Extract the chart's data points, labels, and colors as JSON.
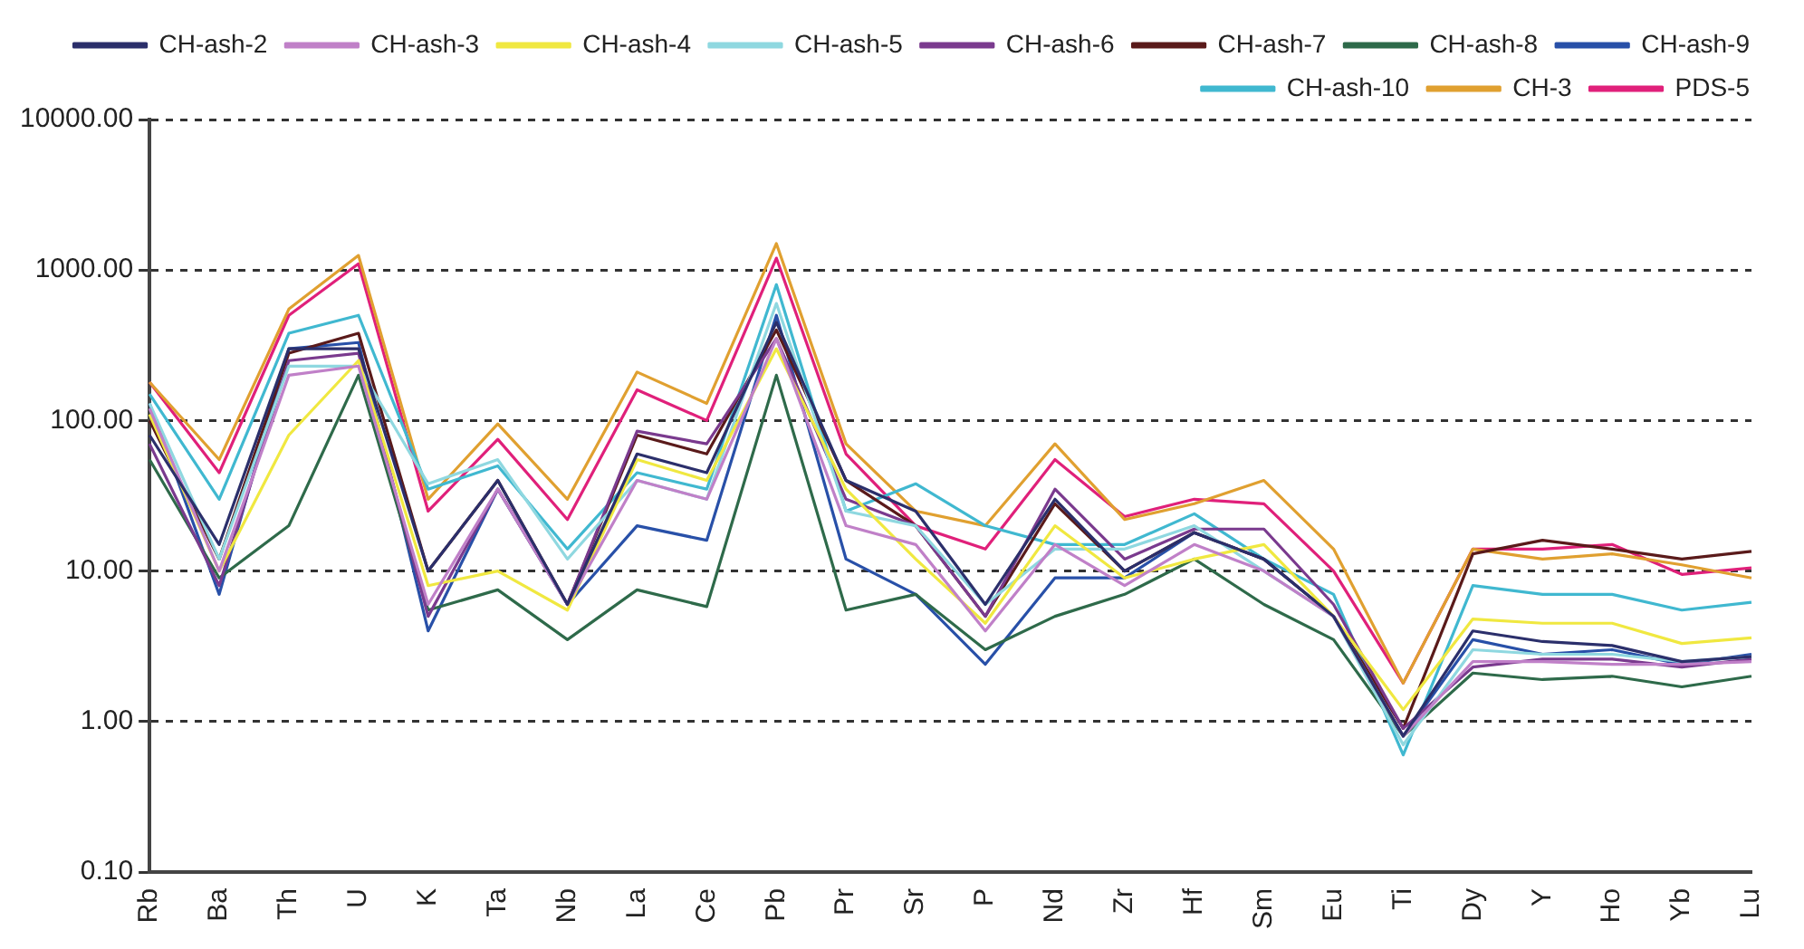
{
  "chart_data": {
    "type": "line",
    "categories": [
      "Rb",
      "Ba",
      "Th",
      "U",
      "K",
      "Ta",
      "Nb",
      "La",
      "Ce",
      "Pb",
      "Pr",
      "Sr",
      "P",
      "Nd",
      "Zr",
      "Hf",
      "Sm",
      "Eu",
      "Ti",
      "Dy",
      "Y",
      "Ho",
      "Yb",
      "Lu"
    ],
    "log": "y",
    "ylim": [
      0.1,
      10000
    ],
    "yticks": [
      {
        "value": 0.1,
        "label": "0.10"
      },
      {
        "value": 1,
        "label": "1.00"
      },
      {
        "value": 10,
        "label": "10.00"
      },
      {
        "value": 100,
        "label": "100.00"
      },
      {
        "value": 1000,
        "label": "1000.00"
      },
      {
        "value": 10000,
        "label": "10000.00"
      }
    ],
    "grid": "y",
    "legend": "top right",
    "marker": "none",
    "line_style": "solid",
    "series": [
      {
        "name": "CH-ash-2",
        "color": "#2b2f6b",
        "values": [
          80,
          15,
          300,
          300,
          10,
          40,
          6,
          60,
          45,
          450,
          40,
          25,
          6,
          30,
          10,
          18,
          12,
          5,
          0.8,
          4,
          3.4,
          3.2,
          2.5,
          2.7
        ]
      },
      {
        "name": "CH-ash-3",
        "color": "#c080c8",
        "values": [
          120,
          10,
          200,
          230,
          6,
          35,
          6,
          40,
          30,
          350,
          20,
          15,
          4,
          15,
          8,
          15,
          10,
          5,
          0.8,
          2.5,
          2.5,
          2.4,
          2.4,
          2.5
        ]
      },
      {
        "name": "CH-ash-4",
        "color": "#f0e840",
        "values": [
          110,
          10,
          80,
          250,
          8,
          10,
          5.5,
          55,
          40,
          300,
          35,
          12,
          4.5,
          20,
          9,
          12,
          15,
          5,
          1.2,
          4.8,
          4.5,
          4.5,
          3.3,
          3.6
        ]
      },
      {
        "name": "CH-ash-5",
        "color": "#8fd8e0",
        "values": [
          130,
          12,
          230,
          230,
          38,
          55,
          12,
          40,
          30,
          600,
          25,
          20,
          6,
          14,
          14,
          20,
          10,
          5,
          0.7,
          3,
          2.8,
          2.8,
          2.5,
          2.7
        ]
      },
      {
        "name": "CH-ash-6",
        "color": "#7a3a8e",
        "values": [
          70,
          8,
          250,
          280,
          5,
          35,
          6,
          85,
          70,
          350,
          30,
          20,
          5,
          35,
          12,
          19,
          19,
          6,
          0.9,
          2.3,
          2.6,
          2.6,
          2.3,
          2.6
        ]
      },
      {
        "name": "CH-ash-7",
        "color": "#5a1a1a",
        "values": [
          100,
          12,
          280,
          380,
          10,
          40,
          6,
          80,
          60,
          400,
          40,
          20,
          5,
          28,
          10,
          18,
          12,
          5,
          0.9,
          13,
          16,
          14,
          12,
          13.5
        ]
      },
      {
        "name": "CH-ash-8",
        "color": "#2e6a4a",
        "values": [
          55,
          9,
          20,
          200,
          5.5,
          7.5,
          3.5,
          7.5,
          5.8,
          200,
          5.5,
          7,
          3,
          5,
          7,
          12,
          6,
          3.5,
          0.8,
          2.1,
          1.9,
          2,
          1.7,
          2
        ]
      },
      {
        "name": "CH-ash-9",
        "color": "#2850a8",
        "values": [
          130,
          7,
          300,
          330,
          4,
          35,
          6,
          20,
          16,
          500,
          12,
          7,
          2.4,
          9,
          9,
          18,
          12,
          5,
          0.8,
          3.5,
          2.8,
          3,
          2.4,
          2.8
        ]
      },
      {
        "name": "CH-ash-10",
        "color": "#40b8d0",
        "values": [
          150,
          30,
          380,
          500,
          35,
          50,
          14,
          45,
          35,
          800,
          25,
          38,
          20,
          15,
          15,
          24,
          12,
          7,
          0.6,
          8,
          7,
          7,
          5.5,
          6.2
        ]
      },
      {
        "name": "CH-3",
        "color": "#e0a030",
        "values": [
          180,
          55,
          550,
          1250,
          30,
          95,
          30,
          210,
          130,
          1500,
          70,
          25,
          20,
          70,
          22,
          28,
          40,
          14,
          1.8,
          14,
          12,
          13,
          11,
          9
        ]
      },
      {
        "name": "PDS-5",
        "color": "#e0207a",
        "values": [
          180,
          45,
          500,
          1100,
          25,
          75,
          22,
          160,
          100,
          1200,
          60,
          20,
          14,
          55,
          23,
          30,
          28,
          10,
          1.8,
          14,
          14,
          15,
          9.5,
          10.5
        ]
      }
    ]
  }
}
